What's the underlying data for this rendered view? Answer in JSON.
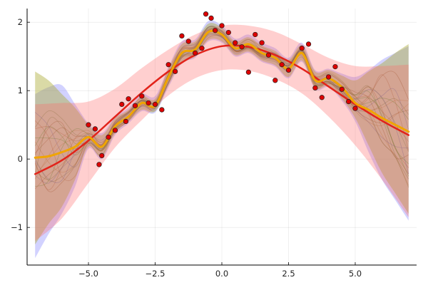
{
  "chart_data": {
    "type": "line",
    "title": "",
    "xlabel": "",
    "ylabel": "",
    "xlim": [
      -7.3,
      7.3
    ],
    "ylim": [
      -1.55,
      2.2
    ],
    "grid": true,
    "legend": "none",
    "x_ticks": [
      {
        "value": -5.0,
        "label": "−5.0"
      },
      {
        "value": -2.5,
        "label": "−2.5"
      },
      {
        "value": 0.0,
        "label": "0.0"
      },
      {
        "value": 2.5,
        "label": "2.5"
      },
      {
        "value": 5.0,
        "label": "5.0"
      }
    ],
    "y_ticks": [
      {
        "value": -1,
        "label": "−1"
      },
      {
        "value": 0,
        "label": "0"
      },
      {
        "value": 1,
        "label": "1"
      },
      {
        "value": 2,
        "label": "2"
      }
    ],
    "colors": {
      "red_mean": "#e2231a",
      "red_band": "#ff6a6a",
      "blue_band": "#6b6bff",
      "olive_band": "#a8a82a",
      "orange_mean": "#f0a500",
      "observations": "#dd0000",
      "sample_paths": "#8a6d3b"
    },
    "series": [
      {
        "kind": "mean",
        "color_key": "red_mean",
        "x": [
          -7,
          -6,
          -5,
          -4,
          -3,
          -2,
          -1,
          0,
          1,
          2,
          3,
          4,
          5,
          6,
          7
        ],
        "y": [
          -0.22,
          -0.02,
          0.27,
          0.62,
          0.97,
          1.28,
          1.52,
          1.65,
          1.64,
          1.52,
          1.32,
          1.06,
          0.8,
          0.56,
          0.35
        ]
      },
      {
        "kind": "band",
        "color_key": "red_band",
        "x": [
          -7,
          -6,
          -5,
          -4,
          -3,
          -2,
          -1,
          0,
          1,
          2,
          3,
          4,
          5,
          6,
          7
        ],
        "lower": [
          -1.2,
          -0.87,
          -0.35,
          0.17,
          0.57,
          0.93,
          1.18,
          1.3,
          1.29,
          1.17,
          0.96,
          0.62,
          0.2,
          -0.3,
          -0.85
        ],
        "upper": [
          0.8,
          0.82,
          0.84,
          1.03,
          1.33,
          1.6,
          1.82,
          1.95,
          1.95,
          1.86,
          1.68,
          1.48,
          1.36,
          1.36,
          1.38
        ]
      },
      {
        "kind": "mean",
        "color_key": "orange_mean",
        "x": [
          -7,
          -6.5,
          -6,
          -5.5,
          -5,
          -4.5,
          -4,
          -3.5,
          -3,
          -2.5,
          -2,
          -1.5,
          -1,
          -0.5,
          0,
          0.5,
          1,
          1.5,
          2,
          2.5,
          3,
          3.5,
          4,
          4.5,
          5,
          5.5,
          6,
          6.5,
          7
        ],
        "y": [
          0.02,
          0.04,
          0.1,
          0.18,
          0.32,
          0.18,
          0.48,
          0.62,
          0.82,
          0.78,
          1.2,
          1.55,
          1.6,
          1.86,
          1.82,
          1.62,
          1.68,
          1.55,
          1.48,
          1.32,
          1.55,
          1.15,
          1.18,
          1.05,
          0.82,
          0.72,
          0.6,
          0.5,
          0.4
        ]
      },
      {
        "kind": "band",
        "color_key": "blue_band",
        "x": [
          -7,
          -6.5,
          -6,
          -5.5,
          -5,
          -4.5,
          -4,
          -3.5,
          -3,
          -2.5,
          -2,
          -1.5,
          -1,
          -0.5,
          0,
          0.5,
          1,
          1.5,
          2,
          2.5,
          3,
          3.5,
          4,
          4.5,
          5,
          5.5,
          6,
          6.5,
          7
        ],
        "lower": [
          -1.45,
          -1.1,
          -0.8,
          -0.4,
          0.15,
          0.0,
          0.35,
          0.52,
          0.7,
          0.68,
          1.05,
          1.4,
          1.48,
          1.72,
          1.7,
          1.5,
          1.55,
          1.42,
          1.35,
          1.18,
          1.42,
          1.02,
          1.05,
          0.85,
          0.55,
          0.1,
          -0.3,
          -0.6,
          -0.9
        ],
        "upper": [
          0.95,
          1.05,
          1.08,
          0.8,
          0.52,
          0.38,
          0.62,
          0.75,
          0.95,
          0.92,
          1.35,
          1.72,
          1.75,
          2.02,
          1.95,
          1.76,
          1.82,
          1.7,
          1.62,
          1.48,
          1.7,
          1.3,
          1.32,
          1.25,
          1.2,
          1.3,
          1.45,
          1.55,
          1.65
        ]
      },
      {
        "kind": "band",
        "color_key": "olive_band",
        "x": [
          -7,
          -6.5,
          -6,
          -5.5,
          -5,
          -4.5,
          -4,
          -3.5,
          -3,
          -2.5,
          -2,
          -1.5,
          -1,
          -0.5,
          0,
          0.5,
          1,
          1.5,
          2,
          2.5,
          3,
          3.5,
          4,
          4.5,
          5,
          5.5,
          6,
          6.5,
          7
        ],
        "lower": [
          -1.25,
          -0.95,
          -0.7,
          -0.3,
          0.18,
          0.03,
          0.38,
          0.55,
          0.72,
          0.7,
          1.08,
          1.42,
          1.5,
          1.74,
          1.72,
          1.52,
          1.57,
          1.44,
          1.37,
          1.2,
          1.44,
          1.04,
          1.07,
          0.88,
          0.6,
          0.2,
          -0.2,
          -0.5,
          -0.8
        ],
        "upper": [
          1.28,
          1.15,
          0.95,
          0.75,
          0.5,
          0.35,
          0.6,
          0.72,
          0.92,
          0.88,
          1.32,
          1.68,
          1.72,
          1.98,
          1.92,
          1.72,
          1.78,
          1.66,
          1.58,
          1.45,
          1.66,
          1.28,
          1.3,
          1.22,
          1.15,
          1.28,
          1.4,
          1.55,
          1.68
        ]
      }
    ],
    "observations": {
      "color_key": "observations",
      "x": [
        -5.0,
        -4.75,
        -4.6,
        -4.5,
        -4.25,
        -4.0,
        -3.75,
        -3.6,
        -3.5,
        -3.25,
        -3.0,
        -2.75,
        -2.5,
        -2.25,
        -2.0,
        -1.75,
        -1.5,
        -1.25,
        -1.0,
        -0.75,
        -0.6,
        -0.4,
        -0.25,
        0.0,
        0.25,
        0.5,
        0.75,
        1.0,
        1.25,
        1.5,
        1.75,
        2.0,
        2.25,
        2.5,
        3.0,
        3.25,
        3.5,
        3.75,
        4.0,
        4.25,
        4.5,
        4.75,
        5.0
      ],
      "y": [
        0.5,
        0.44,
        -0.08,
        0.05,
        0.32,
        0.42,
        0.8,
        0.55,
        0.88,
        0.78,
        0.92,
        0.82,
        0.8,
        0.72,
        1.38,
        1.28,
        1.8,
        1.72,
        1.55,
        1.62,
        2.12,
        2.06,
        1.88,
        1.95,
        1.85,
        1.7,
        1.64,
        1.27,
        1.82,
        1.7,
        1.52,
        1.15,
        1.38,
        1.3,
        1.62,
        1.68,
        1.04,
        0.9,
        1.2,
        1.35,
        1.02,
        0.84,
        0.74
      ]
    },
    "sample_paths_count": 20
  }
}
